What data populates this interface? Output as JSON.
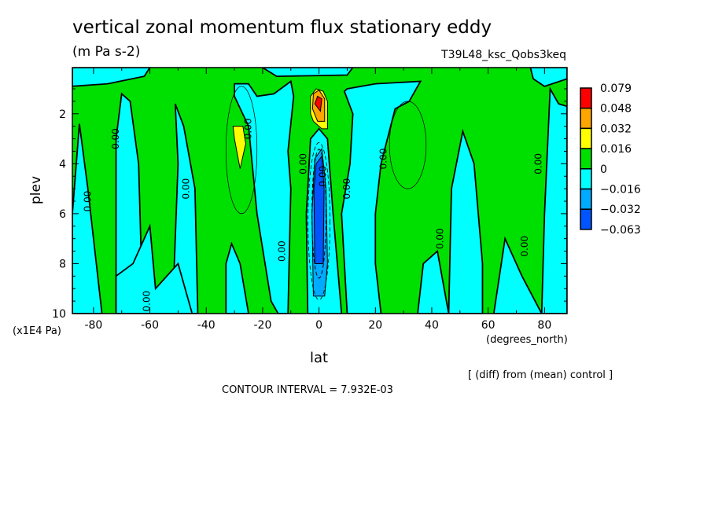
{
  "title": "vertical zonal momentum flux stationary eddy",
  "units": "(m Pa s-2)",
  "dataset": "T39L48_ksc_Qobs3keq",
  "footer_diff": "[ (diff) from (mean) control ]",
  "contour_interval": "CONTOUR INTERVAL = 7.932E-03",
  "chart_data": {
    "type": "contour",
    "xlabel": "lat",
    "xunits": "(degrees_north)",
    "ylabel": "plev",
    "yunits": "(x1E4 Pa)",
    "xlim": [
      -87.5,
      88
    ],
    "ylim": [
      10,
      0.15
    ],
    "y_inverted": true,
    "xticks": [
      "-80",
      "-60",
      "-40",
      "-20",
      "0",
      "20",
      "40",
      "60",
      "80"
    ],
    "xtick_values": [
      -80,
      -60,
      -40,
      -20,
      0,
      20,
      40,
      60,
      80
    ],
    "yticks": [
      "2",
      "4",
      "6",
      "8",
      "10"
    ],
    "ytick_values": [
      2,
      4,
      6,
      8,
      10
    ],
    "legend": {
      "placement": "right",
      "labels": [
        "0.079",
        "0.048",
        "0.032",
        "0.016",
        "0",
        "-0.016",
        "-0.032",
        "-0.063"
      ],
      "colors": [
        "#ff0000",
        "#ffa500",
        "#ffff00",
        "#00e000",
        "#00ffff",
        "#00aaff",
        "#0055ff"
      ]
    },
    "contour_label": "0.00",
    "features": [
      {
        "description_level": "max",
        "lat": 0,
        "plev": 1.6,
        "range": "0.048 to 0.079"
      },
      {
        "description_level": "min",
        "lat": 0,
        "plev": 6,
        "range": "-0.063 to -0.032"
      },
      {
        "lat": -28,
        "plev": 3.2,
        "range": "0.016 to 0.032"
      }
    ]
  }
}
